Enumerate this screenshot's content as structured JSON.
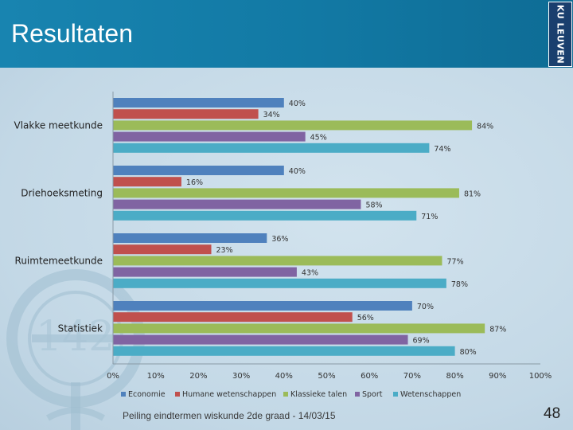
{
  "slide": {
    "title": "Resultaten",
    "logo": "KU LEUVEN",
    "footer": "Peiling eindtermen wiskunde 2de graad - 14/03/15",
    "page_number": "48"
  },
  "chart_data": {
    "type": "bar",
    "orientation": "horizontal",
    "categories": [
      "Vlakke meetkunde",
      "Driehoeksmeting",
      "Ruimtemeetkunde",
      "Statistiek"
    ],
    "series": [
      {
        "name": "Economie",
        "color": "#4f81bd",
        "values": [
          40,
          40,
          36,
          70
        ]
      },
      {
        "name": "Humane wetenschappen",
        "color": "#c0504d",
        "values": [
          34,
          16,
          23,
          56
        ]
      },
      {
        "name": "Klassieke talen",
        "color": "#9bbb59",
        "values": [
          84,
          81,
          77,
          87
        ]
      },
      {
        "name": "Sport",
        "color": "#8064a2",
        "values": [
          45,
          58,
          43,
          69
        ]
      },
      {
        "name": "Wetenschappen",
        "color": "#4bacc6",
        "values": [
          74,
          71,
          78,
          80
        ]
      }
    ],
    "value_labels": [
      [
        "40%",
        "34%",
        "84%",
        "45%",
        "74%"
      ],
      [
        "40%",
        "16%",
        "81%",
        "58%",
        "71%"
      ],
      [
        "36%",
        "23%",
        "77%",
        "43%",
        "78%"
      ],
      [
        "70%",
        "56%",
        "87%",
        "69%",
        "80%"
      ]
    ],
    "x_ticks": [
      "0%",
      "10%",
      "20%",
      "30%",
      "40%",
      "50%",
      "60%",
      "70%",
      "80%",
      "90%",
      "100%"
    ],
    "xlim": [
      0,
      100
    ],
    "legend_position": "bottom",
    "grid": false
  }
}
